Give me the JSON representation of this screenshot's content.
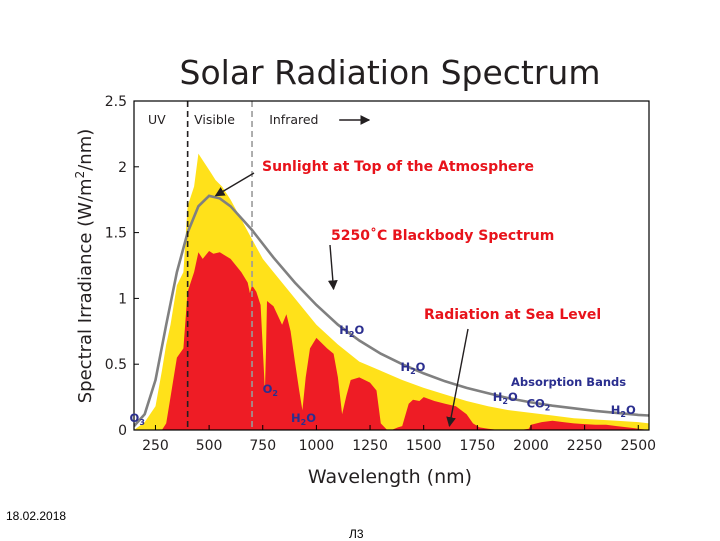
{
  "slide": {
    "date": "18.02.2018",
    "page": "Л3"
  },
  "chart_data": {
    "type": "area",
    "title": "Solar Radiation Spectrum",
    "xlabel": "Wavelength (nm)",
    "ylabel": "Spectral Irradiance (W/m²/nm)",
    "ylabel_parts": {
      "main": "Spectral Irradiance (W/m",
      "sup": "2",
      "end": "/nm)"
    },
    "xlim": [
      150,
      2550
    ],
    "ylim": [
      0,
      2.5
    ],
    "x_ticks": [
      250,
      500,
      750,
      1000,
      1250,
      1500,
      1750,
      2000,
      2250,
      2500
    ],
    "y_ticks": [
      0,
      0.5,
      1,
      1.5,
      2,
      2.5
    ],
    "y_tick_labels": [
      "0",
      "0.5",
      "1",
      "1.5",
      "2",
      "2.5"
    ],
    "grid": false,
    "region_bounds": [
      {
        "x": 400,
        "style": "dashed-black"
      },
      {
        "x": 700,
        "style": "dashed-gray"
      }
    ],
    "region_labels": [
      {
        "text": "UV",
        "x": 215
      },
      {
        "text": "Visible",
        "x": 430
      },
      {
        "text": "Infrared",
        "x": 780,
        "arrow": true
      }
    ],
    "annotations": [
      {
        "text": "Sunlight at Top of the Atmosphere",
        "color": "#e8131b",
        "target": [
          530,
          1.78
        ]
      },
      {
        "text": "5250˚C Blackbody Spectrum",
        "color": "#e8131b",
        "target": [
          1080,
          1.07
        ]
      },
      {
        "text": "Radiation at Sea Level",
        "color": "#e8131b",
        "target": [
          1620,
          0.03
        ]
      }
    ],
    "absorption_label": {
      "text": "Absorption Bands",
      "color": "#2b2f8f"
    },
    "molecule_labels": [
      {
        "base": "O",
        "sub": "3",
        "x": 165,
        "y": 0.06
      },
      {
        "base": "O",
        "sub": "2",
        "x": 785,
        "y": 0.28
      },
      {
        "base": "H",
        "sub": "2",
        "tail": "O",
        "x": 940,
        "y": 0.06
      },
      {
        "base": "H",
        "sub": "2",
        "tail": "O",
        "x": 1165,
        "y": 0.73
      },
      {
        "base": "H",
        "sub": "2",
        "tail": "O",
        "x": 1450,
        "y": 0.45
      },
      {
        "base": "H",
        "sub": "2",
        "tail": "O",
        "x": 1880,
        "y": 0.22
      },
      {
        "base": "CO",
        "sub": "2",
        "x": 2035,
        "y": 0.17
      },
      {
        "base": "H",
        "sub": "2",
        "tail": "O",
        "x": 2430,
        "y": 0.12
      }
    ],
    "series": [
      {
        "name": "Sunlight at Top of the Atmosphere",
        "color": "#ffe11a",
        "x": [
          150,
          200,
          250,
          280,
          300,
          320,
          350,
          380,
          400,
          430,
          450,
          470,
          490,
          510,
          530,
          560,
          600,
          650,
          700,
          750,
          800,
          900,
          1000,
          1100,
          1200,
          1300,
          1400,
          1500,
          1600,
          1700,
          1800,
          1900,
          2000,
          2100,
          2200,
          2300,
          2400,
          2500,
          2550
        ],
        "y": [
          0.0,
          0.06,
          0.18,
          0.45,
          0.65,
          0.8,
          1.1,
          1.2,
          1.7,
          1.85,
          2.1,
          2.05,
          2.0,
          1.95,
          1.9,
          1.85,
          1.75,
          1.6,
          1.45,
          1.3,
          1.2,
          1.0,
          0.8,
          0.65,
          0.52,
          0.45,
          0.38,
          0.32,
          0.27,
          0.22,
          0.18,
          0.15,
          0.13,
          0.11,
          0.09,
          0.08,
          0.07,
          0.06,
          0.05
        ]
      },
      {
        "name": "5250˚C Blackbody Spectrum",
        "color": "#808080",
        "x": [
          150,
          200,
          250,
          300,
          350,
          400,
          450,
          500,
          550,
          600,
          700,
          800,
          900,
          1000,
          1100,
          1200,
          1300,
          1400,
          1500,
          1600,
          1700,
          1800,
          1900,
          2000,
          2100,
          2200,
          2300,
          2400,
          2500,
          2550
        ],
        "y": [
          0.03,
          0.12,
          0.38,
          0.8,
          1.2,
          1.5,
          1.7,
          1.78,
          1.76,
          1.7,
          1.52,
          1.31,
          1.12,
          0.95,
          0.8,
          0.68,
          0.58,
          0.5,
          0.43,
          0.37,
          0.32,
          0.28,
          0.24,
          0.21,
          0.185,
          0.165,
          0.145,
          0.13,
          0.115,
          0.11
        ]
      },
      {
        "name": "Radiation at Sea Level",
        "color": "#ee1c25",
        "x": [
          280,
          300,
          320,
          350,
          380,
          400,
          430,
          450,
          470,
          500,
          520,
          550,
          600,
          650,
          680,
          690,
          700,
          720,
          740,
          760,
          765,
          770,
          800,
          840,
          860,
          880,
          900,
          920,
          935,
          950,
          970,
          1000,
          1050,
          1080,
          1100,
          1120,
          1140,
          1160,
          1200,
          1250,
          1280,
          1300,
          1330,
          1350,
          1380,
          1400,
          1430,
          1450,
          1480,
          1500,
          1550,
          1600,
          1650,
          1700,
          1730,
          1760,
          1800,
          1850,
          1900,
          1950,
          1990,
          2000,
          2050,
          2100,
          2150,
          2200,
          2250,
          2300,
          2350,
          2400,
          2450,
          2500,
          2550
        ],
        "y": [
          0.0,
          0.05,
          0.25,
          0.55,
          0.62,
          1.05,
          1.2,
          1.35,
          1.3,
          1.36,
          1.34,
          1.35,
          1.3,
          1.2,
          1.12,
          1.04,
          1.1,
          1.05,
          0.95,
          0.3,
          0.6,
          0.98,
          0.94,
          0.8,
          0.88,
          0.75,
          0.52,
          0.3,
          0.15,
          0.4,
          0.62,
          0.7,
          0.62,
          0.58,
          0.4,
          0.12,
          0.26,
          0.38,
          0.4,
          0.36,
          0.3,
          0.05,
          0.0,
          0.0,
          0.02,
          0.03,
          0.2,
          0.23,
          0.22,
          0.25,
          0.22,
          0.2,
          0.18,
          0.12,
          0.05,
          0.02,
          0.01,
          0.0,
          0.0,
          0.0,
          0.01,
          0.04,
          0.06,
          0.07,
          0.06,
          0.05,
          0.045,
          0.04,
          0.04,
          0.03,
          0.02,
          0.01,
          0.0
        ]
      }
    ]
  }
}
